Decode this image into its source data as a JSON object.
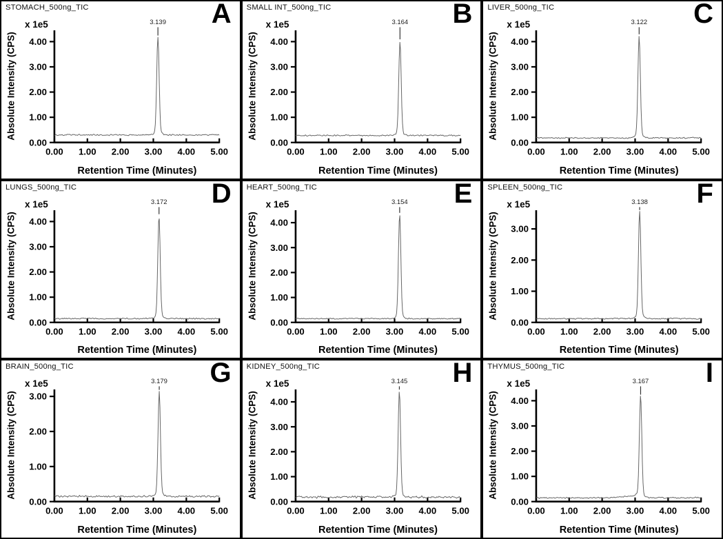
{
  "figure": {
    "rows": 3,
    "cols": 3,
    "axis_color": "#000000",
    "trace_color": "#666666",
    "background_color": "#ffffff"
  },
  "chart_data": [
    {
      "type": "line",
      "panel": "A",
      "title": "STOMACH_500ng_TIC",
      "xlabel": "Retention Time (Minutes)",
      "ylabel": "Absolute Intensity (CPS)",
      "y_scale_label": "x 1e5",
      "xlim": [
        0,
        5
      ],
      "ylim": [
        0,
        4.45
      ],
      "xticks": [
        "0.00",
        "1.00",
        "2.00",
        "3.00",
        "4.00",
        "5.00"
      ],
      "yticks": [
        "0.00",
        "1.00",
        "2.00",
        "3.00",
        "4.00"
      ],
      "peak": {
        "rt": 3.139,
        "label": "3.139",
        "height_1e5": 4.05
      },
      "baseline_1e5": 0.3,
      "noise_amp_1e5": 0.06
    },
    {
      "type": "line",
      "panel": "B",
      "title": "SMALL INT_500ng_TIC",
      "xlabel": "Retention Time (Minutes)",
      "ylabel": "Absolute Intensity (CPS)",
      "y_scale_label": "x 1e5",
      "xlim": [
        0,
        5
      ],
      "ylim": [
        0,
        4.45
      ],
      "xticks": [
        "0.00",
        "1.00",
        "2.00",
        "3.00",
        "4.00",
        "5.00"
      ],
      "yticks": [
        "0.00",
        "1.00",
        "2.00",
        "3.00",
        "4.00"
      ],
      "peak": {
        "rt": 3.164,
        "label": "3.164",
        "height_1e5": 3.9
      },
      "baseline_1e5": 0.28,
      "noise_amp_1e5": 0.06
    },
    {
      "type": "line",
      "panel": "C",
      "title": "LIVER_500ng_TIC",
      "xlabel": "Retention Time (Minutes)",
      "ylabel": "Absolute Intensity (CPS)",
      "y_scale_label": "x 1e5",
      "xlim": [
        0,
        5
      ],
      "ylim": [
        0,
        4.45
      ],
      "xticks": [
        "0.00",
        "1.00",
        "2.00",
        "3.00",
        "4.00",
        "5.00"
      ],
      "yticks": [
        "0.00",
        "1.00",
        "2.00",
        "3.00",
        "4.00"
      ],
      "peak": {
        "rt": 3.122,
        "label": "3.122",
        "height_1e5": 4.1
      },
      "baseline_1e5": 0.18,
      "noise_amp_1e5": 0.06
    },
    {
      "type": "line",
      "panel": "D",
      "title": "LUNGS_500ng_TIC",
      "xlabel": "Retention Time (Minutes)",
      "ylabel": "Absolute Intensity (CPS)",
      "y_scale_label": "x 1e5",
      "xlim": [
        0,
        5
      ],
      "ylim": [
        0,
        4.45
      ],
      "xticks": [
        "0.00",
        "1.00",
        "2.00",
        "3.00",
        "4.00",
        "5.00"
      ],
      "yticks": [
        "0.00",
        "1.00",
        "2.00",
        "3.00",
        "4.00"
      ],
      "peak": {
        "rt": 3.172,
        "label": "3.172",
        "height_1e5": 4.1
      },
      "baseline_1e5": 0.15,
      "noise_amp_1e5": 0.06
    },
    {
      "type": "line",
      "panel": "E",
      "title": "HEART_500ng_TIC",
      "xlabel": "Retention Time (Minutes)",
      "ylabel": "Absolute Intensity (CPS)",
      "y_scale_label": "x 1e5",
      "xlim": [
        0,
        5
      ],
      "ylim": [
        0,
        4.5
      ],
      "xticks": [
        "0.00",
        "1.00",
        "2.00",
        "3.00",
        "4.00",
        "5.00"
      ],
      "yticks": [
        "0.00",
        "1.00",
        "2.00",
        "3.00",
        "4.00"
      ],
      "peak": {
        "rt": 3.154,
        "label": "3.154",
        "height_1e5": 4.2
      },
      "baseline_1e5": 0.15,
      "noise_amp_1e5": 0.05
    },
    {
      "type": "line",
      "panel": "F",
      "title": "SPLEEN_500ng_TIC",
      "xlabel": "Retention Time (Minutes)",
      "ylabel": "Absolute Intensity (CPS)",
      "y_scale_label": "x 1e5",
      "xlim": [
        0,
        5
      ],
      "ylim": [
        0,
        3.6
      ],
      "xticks": [
        "0.00",
        "1.00",
        "2.00",
        "3.00",
        "4.00",
        "5.00"
      ],
      "yticks": [
        "0.00",
        "1.00",
        "2.00",
        "3.00"
      ],
      "peak": {
        "rt": 3.138,
        "label": "3.138",
        "height_1e5": 3.45
      },
      "baseline_1e5": 0.12,
      "noise_amp_1e5": 0.05
    },
    {
      "type": "line",
      "panel": "G",
      "title": "BRAIN_500ng_TIC",
      "xlabel": "Retention Time (Minutes)",
      "ylabel": "Absolute Intensity (CPS)",
      "y_scale_label": "x 1e5",
      "xlim": [
        0,
        5
      ],
      "ylim": [
        0,
        3.2
      ],
      "xticks": [
        "0.00",
        "1.00",
        "2.00",
        "3.00",
        "4.00",
        "5.00"
      ],
      "yticks": [
        "0.00",
        "1.00",
        "2.00",
        "3.00"
      ],
      "peak": {
        "rt": 3.179,
        "label": "3.179",
        "height_1e5": 3.05
      },
      "baseline_1e5": 0.15,
      "noise_amp_1e5": 0.06
    },
    {
      "type": "line",
      "panel": "H",
      "title": "KIDNEY_500ng_TIC",
      "xlabel": "Retention Time (Minutes)",
      "ylabel": "Absolute Intensity (CPS)",
      "y_scale_label": "x 1e5",
      "xlim": [
        0,
        5
      ],
      "ylim": [
        0,
        4.5
      ],
      "xticks": [
        "0.00",
        "1.00",
        "2.00",
        "3.00",
        "4.00",
        "5.00"
      ],
      "yticks": [
        "0.00",
        "1.00",
        "2.00",
        "3.00",
        "4.00"
      ],
      "peak": {
        "rt": 3.145,
        "label": "3.145",
        "height_1e5": 4.3
      },
      "baseline_1e5": 0.18,
      "noise_amp_1e5": 0.1
    },
    {
      "type": "line",
      "panel": "I",
      "title": "THYMUS_500ng_TIC",
      "xlabel": "Retention Time (Minutes)",
      "ylabel": "Absolute Intensity (CPS)",
      "y_scale_label": "x 1e5",
      "xlim": [
        0,
        5
      ],
      "ylim": [
        0,
        4.45
      ],
      "xticks": [
        "0.00",
        "1.00",
        "2.00",
        "3.00",
        "4.00",
        "5.00"
      ],
      "yticks": [
        "0.00",
        "1.00",
        "2.00",
        "3.00",
        "4.00"
      ],
      "peak": {
        "rt": 3.167,
        "label": "3.167",
        "height_1e5": 4.05
      },
      "baseline_1e5": 0.15,
      "noise_amp_1e5": 0.06,
      "pre_rise_start_min": 2.3,
      "pre_rise_amount_1e5": 0.09
    }
  ]
}
